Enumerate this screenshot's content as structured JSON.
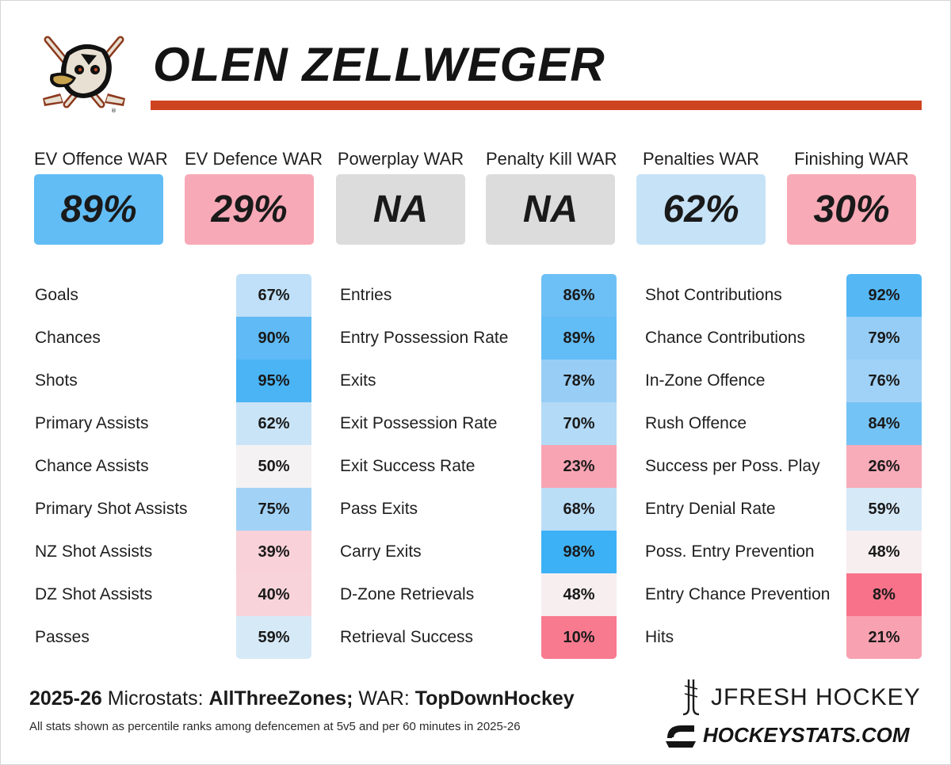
{
  "player": {
    "name": "OLEN ZELLWEGER"
  },
  "war": [
    {
      "label": "EV Offence WAR",
      "value": "89%",
      "color": "#62bdf5"
    },
    {
      "label": "EV Defence WAR",
      "value": "29%",
      "color": "#f8a9b7"
    },
    {
      "label": "Powerplay WAR",
      "value": "NA",
      "color": "#dcdcdc"
    },
    {
      "label": "Penalty Kill WAR",
      "value": "NA",
      "color": "#dcdcdc"
    },
    {
      "label": "Penalties WAR",
      "value": "62%",
      "color": "#c6e2f7"
    },
    {
      "label": "Finishing WAR",
      "value": "30%",
      "color": "#f8aab7"
    }
  ],
  "stat_columns": [
    [
      {
        "label": "Goals",
        "value": "67%",
        "color": "#bfe0f8"
      },
      {
        "label": "Chances",
        "value": "90%",
        "color": "#5fbaf5"
      },
      {
        "label": "Shots",
        "value": "95%",
        "color": "#4ab4f5"
      },
      {
        "label": "Primary Assists",
        "value": "62%",
        "color": "#cae4f7"
      },
      {
        "label": "Chance Assists",
        "value": "50%",
        "color": "#f5f2f3"
      },
      {
        "label": "Primary Shot Assists",
        "value": "75%",
        "color": "#a2d3f7"
      },
      {
        "label": "NZ Shot Assists",
        "value": "39%",
        "color": "#f8d2d8"
      },
      {
        "label": "DZ Shot Assists",
        "value": "40%",
        "color": "#f8d4da"
      },
      {
        "label": "Passes",
        "value": "59%",
        "color": "#d6e9f7"
      }
    ],
    [
      {
        "label": "Entries",
        "value": "86%",
        "color": "#6dc0f5"
      },
      {
        "label": "Entry Possession Rate",
        "value": "89%",
        "color": "#62bcf5"
      },
      {
        "label": "Exits",
        "value": "78%",
        "color": "#98cef6"
      },
      {
        "label": "Exit Possession Rate",
        "value": "70%",
        "color": "#b3daf7"
      },
      {
        "label": "Exit Success Rate",
        "value": "23%",
        "color": "#f8a4b3"
      },
      {
        "label": "Pass Exits",
        "value": "68%",
        "color": "#bbdef7"
      },
      {
        "label": "Carry Exits",
        "value": "98%",
        "color": "#3db1f6"
      },
      {
        "label": "D-Zone Retrievals",
        "value": "48%",
        "color": "#f7eef0"
      },
      {
        "label": "Retrieval Success",
        "value": "10%",
        "color": "#f87a8f"
      }
    ],
    [
      {
        "label": "Shot Contributions",
        "value": "92%",
        "color": "#55b8f5"
      },
      {
        "label": "Chance Contributions",
        "value": "79%",
        "color": "#96cdf6"
      },
      {
        "label": "In-Zone Offence",
        "value": "76%",
        "color": "#a0d2f7"
      },
      {
        "label": "Rush Offence",
        "value": "84%",
        "color": "#74c3f6"
      },
      {
        "label": "Success per Poss. Play",
        "value": "26%",
        "color": "#f8abb8"
      },
      {
        "label": "Entry Denial Rate",
        "value": "59%",
        "color": "#d6e9f7"
      },
      {
        "label": "Poss. Entry Prevention",
        "value": "48%",
        "color": "#f7eef0"
      },
      {
        "label": "Entry Chance Prevention",
        "value": "8%",
        "color": "#f8738a"
      },
      {
        "label": "Hits",
        "value": "21%",
        "color": "#f8a1b0"
      }
    ]
  ],
  "footer": {
    "season": "2025-26",
    "microstats_label": " Microstats: ",
    "microstats_source": "AllThreeZones;",
    "war_label": " WAR: ",
    "war_source": "TopDownHockey",
    "note": "All stats shown as percentile ranks among defencemen at 5v5 and per 60 minutes in 2025-26"
  },
  "branding": {
    "primary": "JFRESH HOCKEY",
    "secondary": "HOCKEYSTATS.COM",
    "primary_icon": "hockey-stick-icon",
    "secondary_icon": "hockeystats-logo-icon"
  },
  "team_logo": "ducks-logo-icon",
  "accent_color": "#cf4420"
}
